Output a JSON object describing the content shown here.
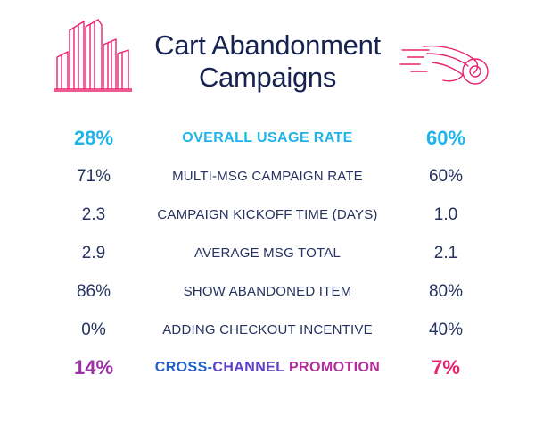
{
  "title": {
    "line1": "Cart Abandonment",
    "line2": "Campaigns"
  },
  "icons": {
    "left": "buildings-icon",
    "right": "winged-shoe-icon"
  },
  "colors": {
    "title": "#16224f",
    "text": "#26325f",
    "highlight_cyan": "#1eb4ea",
    "cross_left_purple": "#9b2fa4",
    "cross_right_pink": "#e8226e",
    "icon_pink": "#e8226e"
  },
  "rows": [
    {
      "left": "28%",
      "label": "OVERALL USAGE RATE",
      "right": "60%"
    },
    {
      "left": "71%",
      "label": "MULTI-MSG CAMPAIGN RATE",
      "right": "60%"
    },
    {
      "left": "2.3",
      "label": "CAMPAIGN KICKOFF TIME (DAYS)",
      "right": "1.0"
    },
    {
      "left": "2.9",
      "label": "AVERAGE MSG TOTAL",
      "right": "2.1"
    },
    {
      "left": "86%",
      "label": "SHOW ABANDONED ITEM",
      "right": "80%"
    },
    {
      "left": "0%",
      "label": "ADDING CHECKOUT INCENTIVE",
      "right": "40%"
    },
    {
      "left": "14%",
      "label_parts": [
        "CROSS-",
        "CHANNEL",
        "PROMOTION"
      ],
      "right": "7%"
    }
  ]
}
